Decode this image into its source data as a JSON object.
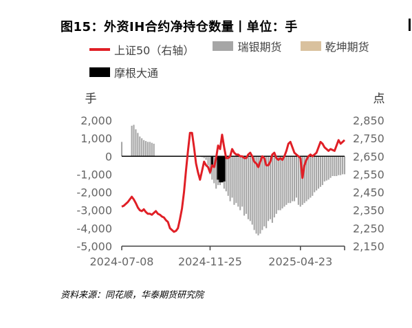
{
  "title": "图15：外资IH合约净持仓数量丨单位：手",
  "legend": [
    {
      "name": "上证50（右轴）",
      "color": "#e01f26",
      "kind": "line"
    },
    {
      "name": "瑞银期货",
      "color": "#a6a6a6",
      "kind": "bar"
    },
    {
      "name": "乾坤期货",
      "color": "#d9c19e",
      "kind": "bar"
    },
    {
      "name": "摩根大通",
      "color": "#000000",
      "kind": "bar"
    }
  ],
  "source": "资料来源：同花顺，华泰期货研究院",
  "chart_data": {
    "type": "bar",
    "title": "图15：外资IH合约净持仓数量丨单位：手",
    "y_left_label": "手",
    "y_right_label": "点",
    "y_left_lim": [
      -5000,
      2000
    ],
    "y_left_ticks": [
      "2,000",
      "1,000",
      "0",
      "-1,000",
      "-2,000",
      "-3,000",
      "-4,000",
      "-5,000"
    ],
    "y_left_tick_values": [
      2000,
      1000,
      0,
      -1000,
      -2000,
      -3000,
      -4000,
      -5000
    ],
    "y_right_lim": [
      2150,
      2850
    ],
    "y_right_ticks": [
      "2,850",
      "2,750",
      "2,650",
      "2,550",
      "2,450",
      "2,350",
      "2,250",
      "2,150"
    ],
    "y_right_tick_values": [
      2850,
      2750,
      2650,
      2550,
      2450,
      2350,
      2250,
      2150
    ],
    "x_ticks": [
      "2024-07-08",
      "2024-11-25",
      "2025-04-23"
    ],
    "x_tick_index": [
      0,
      44,
      89
    ],
    "n_periods": 112,
    "series": [
      {
        "name": "瑞银期货",
        "axis": "left",
        "color": "#a6a6a6",
        "type": "bar",
        "values": [
          800,
          0,
          0,
          0,
          0,
          1700,
          1750,
          1500,
          1300,
          1100,
          1000,
          900,
          850,
          800,
          800,
          750,
          700,
          0,
          0,
          0,
          0,
          0,
          0,
          0,
          0,
          0,
          0,
          0,
          0,
          0,
          0,
          0,
          0,
          0,
          0,
          0,
          0,
          0,
          0,
          0,
          -50,
          -100,
          -200,
          -500,
          -1000,
          -1300,
          -1500,
          -1800,
          -1600,
          -1600,
          -1200,
          -1800,
          -1950,
          -2200,
          -2500,
          -2300,
          -2700,
          -2600,
          -2800,
          -3000,
          -2800,
          -3300,
          -3200,
          -3500,
          -3600,
          -3800,
          -4100,
          -4300,
          -4400,
          -4300,
          -4100,
          -3900,
          -4000,
          -3600,
          -3500,
          -3700,
          -3400,
          -3200,
          -3000,
          -3000,
          -2900,
          -2800,
          -2700,
          -2600,
          -2600,
          -2500,
          -2500,
          -2300,
          -2700,
          -2800,
          -2700,
          -2600,
          -2500,
          -2400,
          -2300,
          -2200,
          -2000,
          -1900,
          -1800,
          -1700,
          -1600,
          -1400,
          -1350,
          -1300,
          -1200,
          -1100,
          -1100,
          -1100,
          -1050,
          -1050,
          -1000,
          -1000
        ]
      },
      {
        "name": "乾坤期货",
        "axis": "left",
        "color": "#d9c19e",
        "type": "bar",
        "values": []
      },
      {
        "name": "摩根大通",
        "axis": "left",
        "color": "#000000",
        "type": "bar",
        "values": {
          "period_index": [
            45,
            48,
            49,
            50,
            51
          ],
          "values": [
            -500,
            -1300,
            -1450,
            -1450,
            -1400
          ]
        }
      },
      {
        "name": "上证50（右轴）",
        "axis": "right",
        "color": "#e01f26",
        "type": "line",
        "values": [
          2370,
          2375,
          2385,
          2395,
          2410,
          2425,
          2410,
          2390,
          2365,
          2350,
          2345,
          2355,
          2340,
          2330,
          2330,
          2325,
          2335,
          2345,
          2330,
          2325,
          2315,
          2310,
          2295,
          2285,
          2250,
          2240,
          2230,
          2235,
          2250,
          2300,
          2360,
          2450,
          2570,
          2680,
          2780,
          2780,
          2700,
          2610,
          2560,
          2520,
          2570,
          2620,
          2600,
          2590,
          2560,
          2600,
          2590,
          2640,
          2710,
          2690,
          2770,
          2700,
          2640,
          2640,
          2650,
          2690,
          2670,
          2660,
          2660,
          2650,
          2650,
          2640,
          2640,
          2660,
          2670,
          2650,
          2620,
          2610,
          2590,
          2620,
          2650,
          2640,
          2600,
          2600,
          2620,
          2660,
          2670,
          2640,
          2630,
          2640,
          2630,
          2650,
          2680,
          2720,
          2730,
          2700,
          2670,
          2660,
          2650,
          2640,
          2530,
          2600,
          2630,
          2650,
          2660,
          2650,
          2660,
          2670,
          2700,
          2730,
          2720,
          2700,
          2690,
          2680,
          2690,
          2685,
          2680,
          2710,
          2740,
          2720,
          2730,
          2740
        ]
      }
    ],
    "grid": false,
    "legend_position": "top-left"
  }
}
